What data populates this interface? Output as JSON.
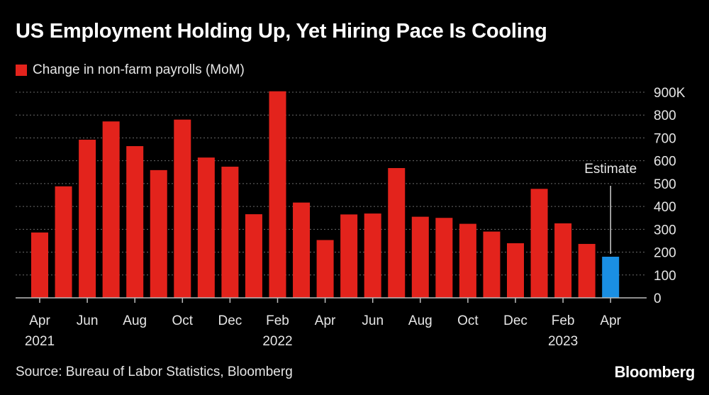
{
  "title": "US Employment Holding Up, Yet Hiring Pace Is Cooling",
  "source": "Source: Bureau of Labor Statistics, Bloomberg",
  "brand": "Bloomberg",
  "colors": {
    "actual": "#e3231c",
    "estimate": "#1a8fe3",
    "grid": "#6a6a6a",
    "text": "#e6e6e6"
  },
  "chart_data": {
    "type": "bar",
    "legend": [
      {
        "name": "Change in non-farm payrolls (MoM)",
        "color": "#e3231c"
      }
    ],
    "categories": [
      "Apr 2021",
      "May 2021",
      "Jun 2021",
      "Jul 2021",
      "Aug 2021",
      "Sep 2021",
      "Oct 2021",
      "Nov 2021",
      "Dec 2021",
      "Jan 2022",
      "Feb 2022",
      "Mar 2022",
      "Apr 2022",
      "May 2022",
      "Jun 2022",
      "Jul 2022",
      "Aug 2022",
      "Sep 2022",
      "Oct 2022",
      "Nov 2022",
      "Dec 2022",
      "Jan 2023",
      "Feb 2023",
      "Mar 2023",
      "Apr 2023"
    ],
    "series": [
      {
        "name": "Change in non-farm payrolls (MoM)",
        "values": [
          286,
          488,
          692,
          772,
          664,
          559,
          780,
          614,
          574,
          366,
          904,
          417,
          253,
          365,
          369,
          568,
          355,
          350,
          324,
          290,
          239,
          477,
          326,
          236,
          180
        ],
        "estimate_flags": [
          false,
          false,
          false,
          false,
          false,
          false,
          false,
          false,
          false,
          false,
          false,
          false,
          false,
          false,
          false,
          false,
          false,
          false,
          false,
          false,
          false,
          false,
          false,
          false,
          true
        ]
      }
    ],
    "x_tick_labels": [
      {
        "index": 0,
        "month": "Apr",
        "year": "2021"
      },
      {
        "index": 2,
        "month": "Jun",
        "year": ""
      },
      {
        "index": 4,
        "month": "Aug",
        "year": ""
      },
      {
        "index": 6,
        "month": "Oct",
        "year": ""
      },
      {
        "index": 8,
        "month": "Dec",
        "year": ""
      },
      {
        "index": 10,
        "month": "Feb",
        "year": "2022"
      },
      {
        "index": 12,
        "month": "Apr",
        "year": ""
      },
      {
        "index": 14,
        "month": "Jun",
        "year": ""
      },
      {
        "index": 16,
        "month": "Aug",
        "year": ""
      },
      {
        "index": 18,
        "month": "Oct",
        "year": ""
      },
      {
        "index": 20,
        "month": "Dec",
        "year": ""
      },
      {
        "index": 22,
        "month": "Feb",
        "year": "2023"
      },
      {
        "index": 24,
        "month": "Apr",
        "year": ""
      }
    ],
    "y_ticks": [
      0,
      100,
      200,
      300,
      400,
      500,
      600,
      700,
      800,
      900
    ],
    "y_tick_labels": [
      "0",
      "100",
      "200",
      "300",
      "400",
      "500",
      "600",
      "700",
      "800",
      "900K"
    ],
    "ylim": [
      0,
      900
    ],
    "grid": true,
    "y_axis_position": "right",
    "annotation": {
      "text": "Estimate",
      "index": 24
    },
    "xlabel": "",
    "ylabel": ""
  }
}
